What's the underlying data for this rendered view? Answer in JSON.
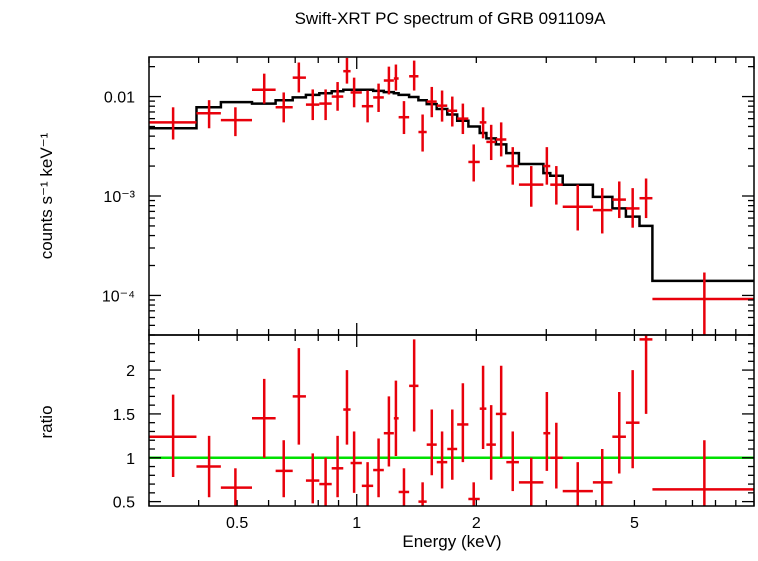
{
  "chart_data": [
    {
      "type": "scatter",
      "title": "Swift-XRT PC spectrum of GRB 091109A",
      "xlabel": "",
      "ylabel": "counts s⁻¹ keV⁻¹",
      "xscale": "log",
      "yscale": "log",
      "xlim": [
        0.3,
        10
      ],
      "ylim": [
        4e-05,
        0.025
      ],
      "y_ticks": [
        {
          "value": 0.01,
          "label": "0.01"
        },
        {
          "value": 0.001,
          "label": "10⁻³"
        },
        {
          "value": 0.0001,
          "label": "10⁻⁴"
        }
      ],
      "colors": {
        "data": "#e8000b",
        "model": "#000000"
      },
      "series": [
        {
          "kind": "data-with-errors",
          "points": [
            {
              "x": 0.345,
              "xlo": 0.3,
              "xhi": 0.395,
              "y": 0.0055,
              "ylo": 0.0037,
              "yhi": 0.0078
            },
            {
              "x": 0.425,
              "xlo": 0.395,
              "xhi": 0.455,
              "y": 0.0068,
              "ylo": 0.0048,
              "yhi": 0.0092
            },
            {
              "x": 0.495,
              "xlo": 0.455,
              "xhi": 0.545,
              "y": 0.0058,
              "ylo": 0.004,
              "yhi": 0.0078
            },
            {
              "x": 0.585,
              "xlo": 0.545,
              "xhi": 0.625,
              "y": 0.0117,
              "ylo": 0.0085,
              "yhi": 0.017
            },
            {
              "x": 0.655,
              "xlo": 0.625,
              "xhi": 0.69,
              "y": 0.0078,
              "ylo": 0.0055,
              "yhi": 0.011
            },
            {
              "x": 0.715,
              "xlo": 0.69,
              "xhi": 0.745,
              "y": 0.0155,
              "ylo": 0.011,
              "yhi": 0.022
            },
            {
              "x": 0.775,
              "xlo": 0.745,
              "xhi": 0.805,
              "y": 0.0083,
              "ylo": 0.0058,
              "yhi": 0.0118
            },
            {
              "x": 0.835,
              "xlo": 0.805,
              "xhi": 0.865,
              "y": 0.0085,
              "ylo": 0.0058,
              "yhi": 0.0118
            },
            {
              "x": 0.895,
              "xlo": 0.865,
              "xhi": 0.925,
              "y": 0.01,
              "ylo": 0.0072,
              "yhi": 0.014
            },
            {
              "x": 0.945,
              "xlo": 0.925,
              "xhi": 0.965,
              "y": 0.018,
              "ylo": 0.0135,
              "yhi": 0.0245
            },
            {
              "x": 0.985,
              "xlo": 0.965,
              "xhi": 1.03,
              "y": 0.011,
              "ylo": 0.0078,
              "yhi": 0.0155
            },
            {
              "x": 1.065,
              "xlo": 1.03,
              "xhi": 1.1,
              "y": 0.008,
              "ylo": 0.0055,
              "yhi": 0.0115
            },
            {
              "x": 1.135,
              "xlo": 1.1,
              "xhi": 1.17,
              "y": 0.0098,
              "ylo": 0.007,
              "yhi": 0.0135
            },
            {
              "x": 1.205,
              "xlo": 1.17,
              "xhi": 1.24,
              "y": 0.0145,
              "ylo": 0.0105,
              "yhi": 0.02
            },
            {
              "x": 1.255,
              "xlo": 1.24,
              "xhi": 1.275,
              "y": 0.0152,
              "ylo": 0.0115,
              "yhi": 0.021
            },
            {
              "x": 1.315,
              "xlo": 1.275,
              "xhi": 1.355,
              "y": 0.0062,
              "ylo": 0.0042,
              "yhi": 0.009
            },
            {
              "x": 1.395,
              "xlo": 1.355,
              "xhi": 1.43,
              "y": 0.016,
              "ylo": 0.0115,
              "yhi": 0.023
            },
            {
              "x": 1.465,
              "xlo": 1.43,
              "xhi": 1.5,
              "y": 0.0044,
              "ylo": 0.0028,
              "yhi": 0.0066
            },
            {
              "x": 1.545,
              "xlo": 1.5,
              "xhi": 1.59,
              "y": 0.0089,
              "ylo": 0.0062,
              "yhi": 0.0125
            },
            {
              "x": 1.64,
              "xlo": 1.59,
              "xhi": 1.69,
              "y": 0.0081,
              "ylo": 0.0056,
              "yhi": 0.0115
            },
            {
              "x": 1.74,
              "xlo": 1.69,
              "xhi": 1.79,
              "y": 0.0072,
              "ylo": 0.005,
              "yhi": 0.01
            },
            {
              "x": 1.85,
              "xlo": 1.79,
              "xhi": 1.91,
              "y": 0.006,
              "ylo": 0.0042,
              "yhi": 0.0085
            },
            {
              "x": 1.97,
              "xlo": 1.91,
              "xhi": 2.04,
              "y": 0.0022,
              "ylo": 0.0014,
              "yhi": 0.0033
            },
            {
              "x": 2.08,
              "xlo": 2.04,
              "xhi": 2.12,
              "y": 0.0055,
              "ylo": 0.0038,
              "yhi": 0.0078
            },
            {
              "x": 2.18,
              "xlo": 2.12,
              "xhi": 2.24,
              "y": 0.0035,
              "ylo": 0.0023,
              "yhi": 0.0052
            },
            {
              "x": 2.31,
              "xlo": 2.24,
              "xhi": 2.38,
              "y": 0.0037,
              "ylo": 0.0025,
              "yhi": 0.0055
            },
            {
              "x": 2.47,
              "xlo": 2.38,
              "xhi": 2.56,
              "y": 0.002,
              "ylo": 0.0013,
              "yhi": 0.0031
            },
            {
              "x": 2.75,
              "xlo": 2.56,
              "xhi": 2.95,
              "y": 0.0013,
              "ylo": 0.00078,
              "yhi": 0.002
            },
            {
              "x": 3.01,
              "xlo": 2.95,
              "xhi": 3.07,
              "y": 0.002,
              "ylo": 0.0013,
              "yhi": 0.0031
            },
            {
              "x": 3.18,
              "xlo": 3.07,
              "xhi": 3.3,
              "y": 0.0013,
              "ylo": 0.00082,
              "yhi": 0.002
            },
            {
              "x": 3.6,
              "xlo": 3.3,
              "xhi": 3.93,
              "y": 0.00078,
              "ylo": 0.00045,
              "yhi": 0.0013
            },
            {
              "x": 4.15,
              "xlo": 3.93,
              "xhi": 4.4,
              "y": 0.00072,
              "ylo": 0.00042,
              "yhi": 0.0012
            },
            {
              "x": 4.58,
              "xlo": 4.4,
              "xhi": 4.76,
              "y": 0.00092,
              "ylo": 0.0006,
              "yhi": 0.0014
            },
            {
              "x": 4.95,
              "xlo": 4.76,
              "xhi": 5.15,
              "y": 0.00075,
              "ylo": 0.00048,
              "yhi": 0.0012
            },
            {
              "x": 5.35,
              "xlo": 5.15,
              "xhi": 5.55,
              "y": 0.00095,
              "ylo": 0.0006,
              "yhi": 0.0015
            },
            {
              "x": 7.5,
              "xlo": 5.55,
              "xhi": 10.0,
              "y": 9.2e-05,
              "ylo": 4e-05,
              "yhi": 0.00017
            }
          ]
        },
        {
          "kind": "model-step",
          "steps": [
            {
              "xlo": 0.3,
              "xhi": 0.395,
              "y": 0.0048
            },
            {
              "xlo": 0.395,
              "xhi": 0.455,
              "y": 0.0078
            },
            {
              "xlo": 0.455,
              "xhi": 0.545,
              "y": 0.0088
            },
            {
              "xlo": 0.545,
              "xhi": 0.625,
              "y": 0.0085
            },
            {
              "xlo": 0.625,
              "xhi": 0.69,
              "y": 0.0092
            },
            {
              "xlo": 0.69,
              "xhi": 0.745,
              "y": 0.0098
            },
            {
              "xlo": 0.745,
              "xhi": 0.805,
              "y": 0.0104
            },
            {
              "xlo": 0.805,
              "xhi": 0.865,
              "y": 0.0108
            },
            {
              "xlo": 0.865,
              "xhi": 0.925,
              "y": 0.0113
            },
            {
              "xlo": 0.925,
              "xhi": 1.03,
              "y": 0.0117
            },
            {
              "xlo": 1.03,
              "xhi": 1.1,
              "y": 0.0117
            },
            {
              "xlo": 1.1,
              "xhi": 1.17,
              "y": 0.0114
            },
            {
              "xlo": 1.17,
              "xhi": 1.24,
              "y": 0.0111
            },
            {
              "xlo": 1.24,
              "xhi": 1.275,
              "y": 0.0108
            },
            {
              "xlo": 1.275,
              "xhi": 1.355,
              "y": 0.0104
            },
            {
              "xlo": 1.355,
              "xhi": 1.43,
              "y": 0.0099
            },
            {
              "xlo": 1.43,
              "xhi": 1.5,
              "y": 0.0092
            },
            {
              "xlo": 1.5,
              "xhi": 1.59,
              "y": 0.0084
            },
            {
              "xlo": 1.59,
              "xhi": 1.69,
              "y": 0.0075
            },
            {
              "xlo": 1.69,
              "xhi": 1.79,
              "y": 0.0066
            },
            {
              "xlo": 1.79,
              "xhi": 1.91,
              "y": 0.0057
            },
            {
              "xlo": 1.91,
              "xhi": 2.04,
              "y": 0.005
            },
            {
              "xlo": 2.04,
              "xhi": 2.12,
              "y": 0.0043
            },
            {
              "xlo": 2.12,
              "xhi": 2.24,
              "y": 0.0038
            },
            {
              "xlo": 2.24,
              "xhi": 2.38,
              "y": 0.0033
            },
            {
              "xlo": 2.38,
              "xhi": 2.56,
              "y": 0.0027
            },
            {
              "xlo": 2.56,
              "xhi": 2.95,
              "y": 0.0021
            },
            {
              "xlo": 2.95,
              "xhi": 3.07,
              "y": 0.0017
            },
            {
              "xlo": 3.07,
              "xhi": 3.3,
              "y": 0.0016
            },
            {
              "xlo": 3.3,
              "xhi": 3.93,
              "y": 0.0013
            },
            {
              "xlo": 3.93,
              "xhi": 4.4,
              "y": 0.00098
            },
            {
              "xlo": 4.4,
              "xhi": 4.76,
              "y": 0.00075
            },
            {
              "xlo": 4.76,
              "xhi": 5.15,
              "y": 0.00062
            },
            {
              "xlo": 5.15,
              "xhi": 5.55,
              "y": 0.0005
            },
            {
              "xlo": 5.55,
              "xhi": 10.0,
              "y": 0.00014
            }
          ]
        }
      ]
    },
    {
      "type": "scatter",
      "title": "",
      "xlabel": "Energy (keV)",
      "ylabel": "ratio",
      "xscale": "log",
      "yscale": "linear",
      "xlim": [
        0.3,
        10
      ],
      "ylim": [
        0.45,
        2.4
      ],
      "x_ticks": [
        {
          "value": 0.5,
          "label": "0.5"
        },
        {
          "value": 1,
          "label": "1"
        },
        {
          "value": 2,
          "label": "2"
        },
        {
          "value": 5,
          "label": "5"
        }
      ],
      "y_ticks": [
        {
          "value": 0.5,
          "label": "0.5"
        },
        {
          "value": 1,
          "label": "1"
        },
        {
          "value": 1.5,
          "label": "1.5"
        },
        {
          "value": 2,
          "label": "2"
        }
      ],
      "colors": {
        "data": "#e8000b",
        "reference_line": "#00e000"
      },
      "reference_line": {
        "y": 1
      },
      "series": [
        {
          "kind": "ratio-with-errors",
          "points": [
            {
              "x": 0.345,
              "xlo": 0.3,
              "xhi": 0.395,
              "y": 1.24,
              "ylo": 0.78,
              "yhi": 1.72
            },
            {
              "x": 0.425,
              "xlo": 0.395,
              "xhi": 0.455,
              "y": 0.9,
              "ylo": 0.55,
              "yhi": 1.25
            },
            {
              "x": 0.495,
              "xlo": 0.455,
              "xhi": 0.545,
              "y": 0.66,
              "ylo": 0.45,
              "yhi": 0.88
            },
            {
              "x": 0.585,
              "xlo": 0.545,
              "xhi": 0.625,
              "y": 1.45,
              "ylo": 1.0,
              "yhi": 1.9
            },
            {
              "x": 0.655,
              "xlo": 0.625,
              "xhi": 0.69,
              "y": 0.85,
              "ylo": 0.55,
              "yhi": 1.2
            },
            {
              "x": 0.715,
              "xlo": 0.69,
              "xhi": 0.745,
              "y": 1.7,
              "ylo": 1.15,
              "yhi": 2.25
            },
            {
              "x": 0.775,
              "xlo": 0.745,
              "xhi": 0.805,
              "y": 0.74,
              "ylo": 0.48,
              "yhi": 1.05
            },
            {
              "x": 0.835,
              "xlo": 0.805,
              "xhi": 0.865,
              "y": 0.7,
              "ylo": 0.45,
              "yhi": 1.0
            },
            {
              "x": 0.895,
              "xlo": 0.865,
              "xhi": 0.925,
              "y": 0.88,
              "ylo": 0.55,
              "yhi": 1.25
            },
            {
              "x": 0.945,
              "xlo": 0.925,
              "xhi": 0.965,
              "y": 1.55,
              "ylo": 1.15,
              "yhi": 2.0
            },
            {
              "x": 0.985,
              "xlo": 0.965,
              "xhi": 1.03,
              "y": 0.94,
              "ylo": 0.6,
              "yhi": 1.3
            },
            {
              "x": 1.065,
              "xlo": 1.03,
              "xhi": 1.1,
              "y": 0.68,
              "ylo": 0.45,
              "yhi": 0.95
            },
            {
              "x": 1.135,
              "xlo": 1.1,
              "xhi": 1.17,
              "y": 0.86,
              "ylo": 0.55,
              "yhi": 1.22
            },
            {
              "x": 1.205,
              "xlo": 1.17,
              "xhi": 1.24,
              "y": 1.28,
              "ylo": 0.9,
              "yhi": 1.7
            },
            {
              "x": 1.255,
              "xlo": 1.24,
              "xhi": 1.275,
              "y": 1.45,
              "ylo": 1.02,
              "yhi": 1.88
            },
            {
              "x": 1.315,
              "xlo": 1.275,
              "xhi": 1.355,
              "y": 0.61,
              "ylo": 0.45,
              "yhi": 0.88
            },
            {
              "x": 1.395,
              "xlo": 1.355,
              "xhi": 1.43,
              "y": 1.82,
              "ylo": 1.3,
              "yhi": 2.35
            },
            {
              "x": 1.465,
              "xlo": 1.43,
              "xhi": 1.5,
              "y": 0.5,
              "ylo": 0.45,
              "yhi": 0.72
            },
            {
              "x": 1.545,
              "xlo": 1.5,
              "xhi": 1.59,
              "y": 1.15,
              "ylo": 0.8,
              "yhi": 1.55
            },
            {
              "x": 1.64,
              "xlo": 1.59,
              "xhi": 1.69,
              "y": 0.95,
              "ylo": 0.65,
              "yhi": 1.3
            },
            {
              "x": 1.74,
              "xlo": 1.69,
              "xhi": 1.79,
              "y": 1.1,
              "ylo": 0.75,
              "yhi": 1.55
            },
            {
              "x": 1.85,
              "xlo": 1.79,
              "xhi": 1.91,
              "y": 1.38,
              "ylo": 0.95,
              "yhi": 1.85
            },
            {
              "x": 1.97,
              "xlo": 1.91,
              "xhi": 2.04,
              "y": 0.53,
              "ylo": 0.45,
              "yhi": 0.72
            },
            {
              "x": 2.08,
              "xlo": 2.04,
              "xhi": 2.12,
              "y": 1.56,
              "ylo": 1.1,
              "yhi": 2.05
            },
            {
              "x": 2.18,
              "xlo": 2.12,
              "xhi": 2.24,
              "y": 1.15,
              "ylo": 0.75,
              "yhi": 1.6
            },
            {
              "x": 2.31,
              "xlo": 2.24,
              "xhi": 2.38,
              "y": 1.5,
              "ylo": 1.0,
              "yhi": 2.05
            },
            {
              "x": 2.47,
              "xlo": 2.38,
              "xhi": 2.56,
              "y": 0.95,
              "ylo": 0.62,
              "yhi": 1.3
            },
            {
              "x": 2.75,
              "xlo": 2.56,
              "xhi": 2.95,
              "y": 0.72,
              "ylo": 0.45,
              "yhi": 1.0
            },
            {
              "x": 3.01,
              "xlo": 2.95,
              "xhi": 3.07,
              "y": 1.28,
              "ylo": 0.85,
              "yhi": 1.75
            },
            {
              "x": 3.18,
              "xlo": 3.07,
              "xhi": 3.3,
              "y": 1.0,
              "ylo": 0.65,
              "yhi": 1.4
            },
            {
              "x": 3.6,
              "xlo": 3.3,
              "xhi": 3.93,
              "y": 0.62,
              "ylo": 0.45,
              "yhi": 0.95
            },
            {
              "x": 4.15,
              "xlo": 3.93,
              "xhi": 4.4,
              "y": 0.72,
              "ylo": 0.45,
              "yhi": 1.1
            },
            {
              "x": 4.58,
              "xlo": 4.4,
              "xhi": 4.76,
              "y": 1.24,
              "ylo": 0.82,
              "yhi": 1.75
            },
            {
              "x": 4.95,
              "xlo": 4.76,
              "xhi": 5.15,
              "y": 1.4,
              "ylo": 0.88,
              "yhi": 2.0
            },
            {
              "x": 5.35,
              "xlo": 5.15,
              "xhi": 5.55,
              "y": 2.35,
              "ylo": 1.5,
              "yhi": 2.4
            },
            {
              "x": 7.5,
              "xlo": 5.55,
              "xhi": 10.0,
              "y": 0.64,
              "ylo": 0.45,
              "yhi": 1.2
            }
          ]
        }
      ]
    }
  ]
}
